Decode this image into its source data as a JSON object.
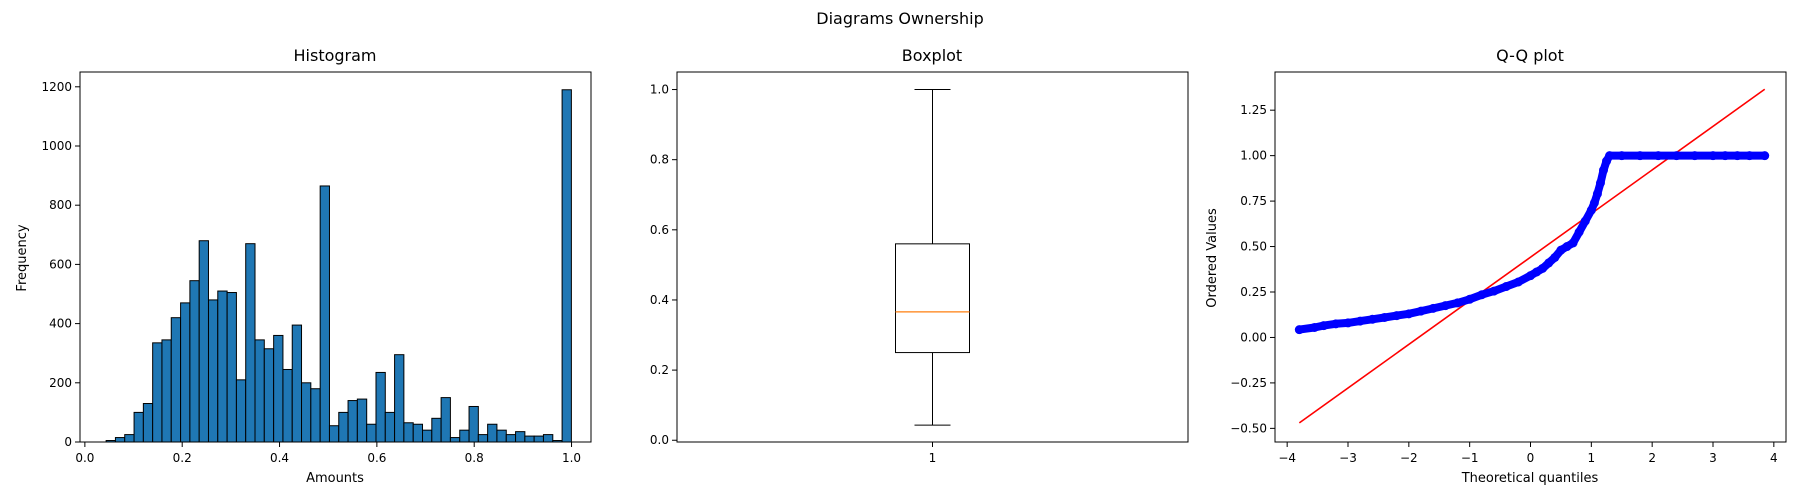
{
  "figure": {
    "suptitle": "Diagrams Ownership"
  },
  "chart_data": [
    {
      "type": "bar",
      "title": "Histogram",
      "xlabel": "Amounts",
      "ylabel": "Frequency",
      "xlim": [
        -0.01,
        1.04
      ],
      "ylim": [
        0,
        1250
      ],
      "xticks": [
        0.0,
        0.2,
        0.4,
        0.6,
        0.8,
        1.0
      ],
      "xtick_labels": [
        "0.0",
        "0.2",
        "0.4",
        "0.6",
        "0.8",
        "1.0"
      ],
      "yticks": [
        0,
        200,
        400,
        600,
        800,
        1000,
        1200
      ],
      "ytick_labels": [
        "0",
        "200",
        "400",
        "600",
        "800",
        "1000",
        "1200"
      ],
      "bin_edges": [
        0.0437,
        0.0628,
        0.0819,
        0.1011,
        0.1202,
        0.1393,
        0.1584,
        0.1775,
        0.1967,
        0.2158,
        0.2349,
        0.254,
        0.2731,
        0.2923,
        0.3114,
        0.3305,
        0.3496,
        0.3687,
        0.3879,
        0.407,
        0.4261,
        0.4452,
        0.4643,
        0.4835,
        0.5026,
        0.5217,
        0.5408,
        0.5599,
        0.5791,
        0.5982,
        0.6173,
        0.6364,
        0.6555,
        0.6747,
        0.6938,
        0.7129,
        0.732,
        0.7511,
        0.7703,
        0.7894,
        0.8085,
        0.8276,
        0.8467,
        0.8659,
        0.885,
        0.9041,
        0.9232,
        0.9423,
        0.9615,
        0.9806,
        0.9997
      ],
      "counts": [
        5,
        15,
        25,
        100,
        130,
        335,
        345,
        420,
        470,
        545,
        680,
        480,
        510,
        505,
        210,
        670,
        345,
        315,
        360,
        245,
        395,
        200,
        180,
        865,
        55,
        100,
        140,
        145,
        60,
        235,
        100,
        295,
        65,
        60,
        40,
        80,
        150,
        15,
        40,
        120,
        25,
        60,
        40,
        25,
        35,
        20,
        20,
        25,
        5,
        1190
      ],
      "bar_color": "#1f77b4",
      "edge_color": "#000000"
    },
    {
      "type": "boxplot",
      "title": "Boxplot",
      "ylim": [
        -0.005,
        1.05
      ],
      "yticks": [
        0.0,
        0.2,
        0.4,
        0.6,
        0.8,
        1.0
      ],
      "ytick_labels": [
        "0.0",
        "0.2",
        "0.4",
        "0.6",
        "0.8",
        "1.0"
      ],
      "xtick_labels": [
        "1"
      ],
      "whisker_low": 0.043,
      "q1": 0.25,
      "median": 0.366,
      "q3": 0.56,
      "whisker_high": 1.0,
      "median_color": "#ff7f0e"
    },
    {
      "type": "scatter",
      "title": "Q-Q plot",
      "xlabel": "Theoretical quantiles",
      "ylabel": "Ordered Values",
      "xlim": [
        -4.2,
        4.2
      ],
      "ylim": [
        -0.575,
        1.46
      ],
      "xticks": [
        -4,
        -3,
        -2,
        -1,
        0,
        1,
        2,
        3,
        4
      ],
      "xtick_labels": [
        "−4",
        "−3",
        "−2",
        "−1",
        "0",
        "1",
        "2",
        "3",
        "4"
      ],
      "yticks": [
        -0.5,
        -0.25,
        0.0,
        0.25,
        0.5,
        0.75,
        1.0,
        1.25
      ],
      "ytick_labels": [
        "−0.50",
        "−0.25",
        "0.00",
        "0.25",
        "0.50",
        "0.75",
        "1.00",
        "1.25"
      ],
      "points": {
        "x": [
          -3.8,
          -3.55,
          -3.4,
          -3.2,
          -3.0,
          -2.8,
          -2.6,
          -2.4,
          -2.2,
          -2.0,
          -1.8,
          -1.6,
          -1.4,
          -1.2,
          -1.0,
          -0.8,
          -0.6,
          -0.4,
          -0.2,
          0.0,
          0.1,
          0.2,
          0.3,
          0.4,
          0.5,
          0.6,
          0.7,
          0.8,
          0.9,
          1.0,
          1.05,
          1.1,
          1.15,
          1.2,
          1.25,
          1.3,
          1.5,
          1.8,
          2.1,
          2.4,
          2.7,
          3.0,
          3.2,
          3.4,
          3.6,
          3.85
        ],
        "y": [
          0.043,
          0.055,
          0.065,
          0.075,
          0.08,
          0.09,
          0.1,
          0.11,
          0.12,
          0.13,
          0.145,
          0.16,
          0.175,
          0.19,
          0.21,
          0.235,
          0.255,
          0.28,
          0.305,
          0.34,
          0.36,
          0.38,
          0.41,
          0.44,
          0.48,
          0.5,
          0.52,
          0.58,
          0.64,
          0.7,
          0.74,
          0.79,
          0.85,
          0.92,
          0.97,
          1.0,
          1.0,
          1.0,
          1.0,
          1.0,
          1.0,
          1.0,
          1.0,
          1.0,
          1.0,
          1.0
        ],
        "color": "#0000ff"
      },
      "fit_line": {
        "x": [
          -3.8,
          3.85
        ],
        "y": [
          -0.47,
          1.365
        ],
        "color": "#ff0000"
      }
    }
  ]
}
